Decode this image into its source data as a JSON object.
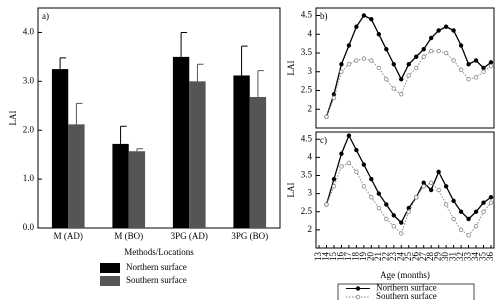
{
  "chart_data": [
    {
      "type": "bar",
      "panel_label": "a)",
      "ylabel": "LAI",
      "xlabel": "Methods/Locations",
      "categories": [
        "M (AD)",
        "M  (BO)",
        "3PG (AD)",
        "3PG (BO)"
      ],
      "series": [
        {
          "name": "Northern surface",
          "color": "#000000",
          "values": [
            3.25,
            1.72,
            3.5,
            3.12
          ],
          "errors": [
            0.23,
            0.36,
            0.5,
            0.6
          ]
        },
        {
          "name": "Southern surface",
          "color": "#555555",
          "values": [
            2.12,
            1.57,
            3.0,
            2.68
          ],
          "errors": [
            0.43,
            0.05,
            0.35,
            0.54
          ]
        }
      ],
      "ylim": [
        0,
        4.5
      ],
      "yticks": [
        {
          "value": 0,
          "label": "0.0"
        },
        {
          "value": 1,
          "label": "1.0"
        },
        {
          "value": 2,
          "label": "2.0"
        },
        {
          "value": 3,
          "label": "3.0"
        },
        {
          "value": 4,
          "label": "4.0"
        }
      ],
      "legend": "bottom"
    },
    {
      "type": "line",
      "panel_label": "b)",
      "ylabel": "LAI",
      "x": [
        14,
        15,
        16,
        17,
        18,
        19,
        20,
        21,
        22,
        23,
        24,
        25,
        26,
        27,
        28,
        29,
        30,
        31,
        32,
        33,
        34,
        35,
        36
      ],
      "series": [
        {
          "color": "#000000",
          "values": [
            1.8,
            2.4,
            3.2,
            3.7,
            4.2,
            4.5,
            4.4,
            4.0,
            3.6,
            3.2,
            2.8,
            3.2,
            3.4,
            3.6,
            3.9,
            4.1,
            4.2,
            4.1,
            3.7,
            3.2,
            3.3,
            3.1,
            3.25
          ]
        },
        {
          "color": "#888888",
          "values": [
            1.8,
            2.3,
            3.0,
            3.2,
            3.3,
            3.35,
            3.3,
            3.1,
            2.8,
            2.55,
            2.4,
            2.9,
            3.1,
            3.4,
            3.55,
            3.55,
            3.5,
            3.3,
            3.05,
            2.8,
            2.85,
            3.0,
            3.15
          ]
        }
      ],
      "xlim": [
        13,
        36
      ],
      "ylim": [
        1.5,
        4.7
      ],
      "yticks": [
        2,
        2.5,
        3,
        3.5,
        4,
        4.5
      ]
    },
    {
      "type": "line",
      "panel_label": "c)",
      "ylabel": "LAI",
      "xlabel": "Age (months)",
      "x": [
        14,
        15,
        16,
        17,
        18,
        19,
        20,
        21,
        22,
        23,
        24,
        25,
        26,
        27,
        28,
        29,
        30,
        31,
        32,
        33,
        34,
        35,
        36
      ],
      "series": [
        {
          "name": "Northern surface",
          "color": "#000000",
          "values": [
            2.7,
            3.4,
            4.1,
            4.6,
            4.2,
            3.8,
            3.4,
            3.0,
            2.7,
            2.4,
            2.2,
            2.6,
            2.9,
            3.3,
            3.1,
            3.6,
            3.2,
            2.8,
            2.5,
            2.3,
            2.5,
            2.75,
            2.9
          ]
        },
        {
          "name": "Southern surface",
          "color": "#888888",
          "values": [
            2.7,
            3.2,
            3.75,
            3.85,
            3.6,
            3.2,
            2.9,
            2.6,
            2.3,
            2.1,
            1.9,
            2.5,
            2.9,
            3.2,
            3.3,
            3.1,
            2.7,
            2.3,
            2.0,
            1.85,
            2.1,
            2.5,
            2.75
          ]
        }
      ],
      "xlim": [
        13,
        36
      ],
      "ylim": [
        1.5,
        4.7
      ],
      "xticks": [
        13,
        14,
        15,
        16,
        17,
        18,
        19,
        20,
        21,
        22,
        23,
        24,
        25,
        26,
        27,
        28,
        29,
        30,
        31,
        32,
        33,
        34,
        35,
        36
      ],
      "yticks": [
        2,
        2.5,
        3,
        3.5,
        4,
        4.5
      ],
      "legend": "bottom"
    }
  ]
}
